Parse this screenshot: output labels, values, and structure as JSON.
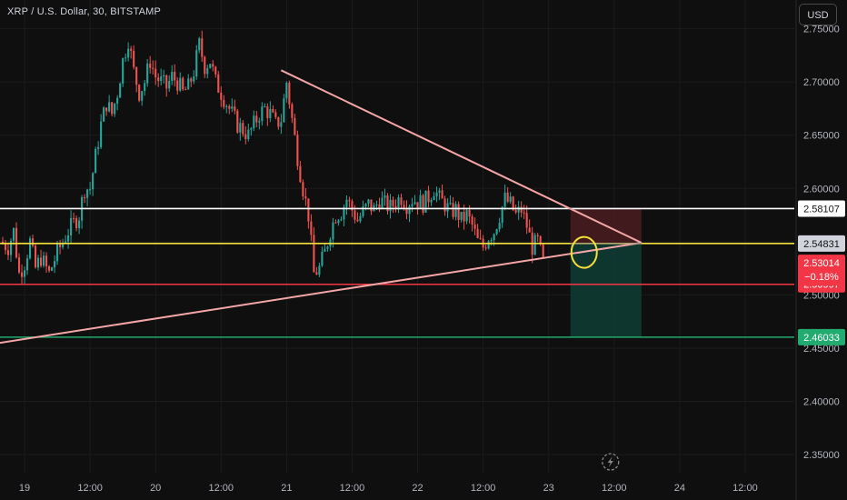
{
  "header": {
    "title": "XRP / U.S. Dollar, 30, BITSTAMP",
    "currency_button": "USD"
  },
  "colors": {
    "background": "#0f0f0f",
    "grid": "#1c1c1c",
    "up": "#26a69a",
    "down": "#ef5350",
    "axis_text": "#b2b5be",
    "trendline": "#f4a6a6",
    "white_level": "#ffffff",
    "yellow_level": "#f5e13a",
    "red_level": "#f23645",
    "green_level": "#22ab6e",
    "stop_zone": "#4a1c20",
    "target_zone": "#0f3a33"
  },
  "badges": {
    "white_level": "2.58107",
    "yellow_level": "2.54831",
    "last_price": "2.53014",
    "last_change": "−0.18%",
    "red_level_partial": "2.50997",
    "green_level": "2.46033"
  },
  "chart_data": {
    "type": "candlestick",
    "symbol": "XRP / U.S. Dollar",
    "interval": "30",
    "exchange": "BITSTAMP",
    "title": "XRP / U.S. Dollar, 30, BITSTAMP",
    "y_ticks": [
      "2.75000",
      "2.70000",
      "2.65000",
      "2.60000",
      "2.55000",
      "2.50000",
      "2.45000",
      "2.40000",
      "2.35000"
    ],
    "ylim": [
      2.333,
      2.777
    ],
    "x_ticks": [
      "19",
      "12:00",
      "20",
      "12:00",
      "21",
      "12:00",
      "22",
      "12:00",
      "23",
      "12:00",
      "24",
      "12:00"
    ],
    "x_tick_hours": [
      0,
      12,
      24,
      36,
      48,
      60,
      72,
      84,
      96,
      108,
      120,
      132
    ],
    "xlim_hours": [
      -4.5,
      141
    ],
    "close_path": [
      [
        -4.5,
        2.55
      ],
      [
        -3,
        2.545
      ],
      [
        -2,
        2.56
      ],
      [
        -1,
        2.52
      ],
      [
        0,
        2.53
      ],
      [
        1,
        2.55
      ],
      [
        2,
        2.525
      ],
      [
        3,
        2.535
      ],
      [
        4.5,
        2.52
      ],
      [
        6,
        2.54
      ],
      [
        8,
        2.56
      ],
      [
        10,
        2.575
      ],
      [
        11,
        2.6
      ],
      [
        12,
        2.6
      ],
      [
        13,
        2.63
      ],
      [
        14,
        2.66
      ],
      [
        15,
        2.68
      ],
      [
        16,
        2.67
      ],
      [
        17,
        2.69
      ],
      [
        18,
        2.72
      ],
      [
        19,
        2.74
      ],
      [
        20,
        2.71
      ],
      [
        21,
        2.69
      ],
      [
        22,
        2.7
      ],
      [
        23,
        2.72
      ],
      [
        24,
        2.705
      ],
      [
        25,
        2.7
      ],
      [
        26,
        2.695
      ],
      [
        27,
        2.705
      ],
      [
        28,
        2.7
      ],
      [
        29,
        2.69
      ],
      [
        30,
        2.695
      ],
      [
        31,
        2.71
      ],
      [
        32,
        2.735
      ],
      [
        33,
        2.715
      ],
      [
        34,
        2.72
      ],
      [
        35,
        2.7
      ],
      [
        36,
        2.69
      ],
      [
        37,
        2.68
      ],
      [
        38,
        2.67
      ],
      [
        39,
        2.66
      ],
      [
        40,
        2.655
      ],
      [
        41,
        2.65
      ],
      [
        42,
        2.66
      ],
      [
        43,
        2.67
      ],
      [
        44,
        2.675
      ],
      [
        45,
        2.67
      ],
      [
        46,
        2.66
      ],
      [
        47,
        2.665
      ],
      [
        48,
        2.7
      ],
      [
        49,
        2.665
      ],
      [
        50,
        2.63
      ],
      [
        51,
        2.6
      ],
      [
        52,
        2.575
      ],
      [
        53,
        2.52
      ],
      [
        54,
        2.525
      ],
      [
        55,
        2.54
      ],
      [
        56,
        2.56
      ],
      [
        57,
        2.575
      ],
      [
        58,
        2.578
      ],
      [
        59,
        2.59
      ],
      [
        60,
        2.58
      ],
      [
        61,
        2.57
      ],
      [
        62,
        2.578
      ],
      [
        63,
        2.585
      ],
      [
        64,
        2.58
      ],
      [
        65,
        2.59
      ],
      [
        66,
        2.585
      ],
      [
        67,
        2.582
      ],
      [
        68,
        2.588
      ],
      [
        69,
        2.592
      ],
      [
        70,
        2.585
      ],
      [
        71,
        2.59
      ],
      [
        72,
        2.588
      ],
      [
        73,
        2.586
      ],
      [
        74,
        2.592
      ],
      [
        75,
        2.6
      ],
      [
        76,
        2.59
      ],
      [
        77,
        2.585
      ],
      [
        78,
        2.578
      ],
      [
        79,
        2.58
      ],
      [
        80,
        2.57
      ],
      [
        81,
        2.575
      ],
      [
        82,
        2.565
      ],
      [
        83,
        2.55
      ],
      [
        84,
        2.545
      ],
      [
        85,
        2.555
      ],
      [
        86,
        2.56
      ],
      [
        87,
        2.575
      ],
      [
        88,
        2.59
      ],
      [
        89,
        2.585
      ],
      [
        90,
        2.575
      ],
      [
        91,
        2.58
      ],
      [
        92,
        2.565
      ],
      [
        93,
        2.545
      ],
      [
        94,
        2.55
      ],
      [
        95,
        2.53
      ]
    ],
    "levels": [
      {
        "name": "white",
        "value": 2.58107,
        "label": "2.58107"
      },
      {
        "name": "yellow",
        "value": 2.54831,
        "label": "2.54831"
      },
      {
        "name": "red",
        "value": 2.50997
      },
      {
        "name": "green",
        "value": 2.46033,
        "label": "2.46033"
      }
    ],
    "last_price": 2.53014,
    "last_change_pct": -0.18,
    "trendlines": [
      {
        "name": "descending",
        "from": [
          47,
          2.711
        ],
        "to": [
          113,
          2.549
        ]
      },
      {
        "name": "ascending",
        "from": [
          -4.5,
          2.455
        ],
        "to": [
          113,
          2.549
        ]
      }
    ],
    "position": {
      "entry": 2.54831,
      "stop": 2.58107,
      "target": 2.46033,
      "start_hour": 100,
      "end_hour": 113
    },
    "highlight_circle": {
      "hour": 102.5,
      "value": 2.54
    }
  }
}
